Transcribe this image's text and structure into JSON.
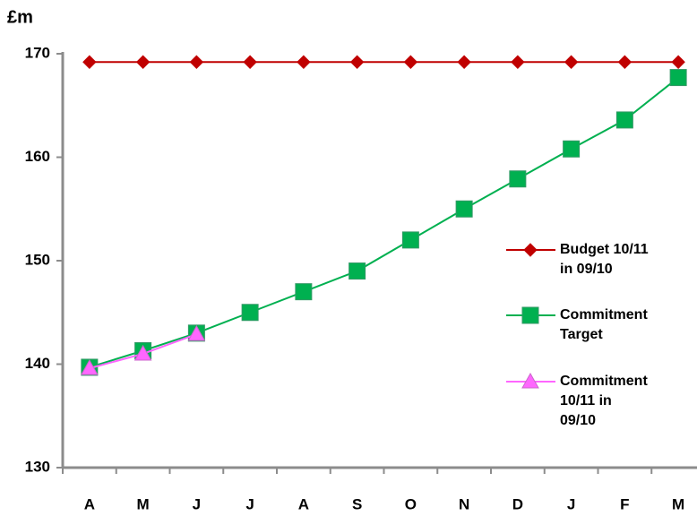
{
  "chart_data": {
    "type": "line",
    "title": "£m",
    "categories": [
      "A",
      "M",
      "J",
      "J",
      "A",
      "S",
      "O",
      "N",
      "D",
      "J",
      "F",
      "M"
    ],
    "series": [
      {
        "name": "Budget 10/11 in 09/10",
        "color": "#c00000",
        "marker": "diamond",
        "values": [
          169.2,
          169.2,
          169.2,
          169.2,
          169.2,
          169.2,
          169.2,
          169.2,
          169.2,
          169.2,
          169.2,
          169.2
        ]
      },
      {
        "name": "Commitment Target",
        "color": "#00b050",
        "marker": "square",
        "values": [
          139.7,
          141.3,
          143,
          145,
          147,
          149,
          152,
          155,
          157.9,
          160.8,
          163.6,
          167.7
        ]
      },
      {
        "name": "Commitment 10/11 in 09/10",
        "color": "#ff66ff",
        "marker": "triangle",
        "values": [
          139.6,
          141,
          142.9,
          null,
          null,
          null,
          null,
          null,
          null,
          null,
          null,
          null
        ]
      }
    ],
    "ylim": [
      130,
      170
    ],
    "yticks": [
      130,
      140,
      150,
      160,
      170
    ]
  }
}
